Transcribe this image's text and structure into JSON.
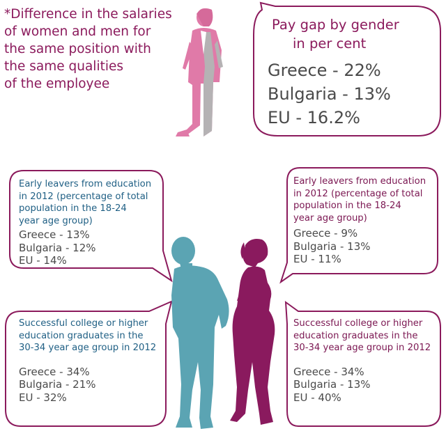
{
  "note": {
    "lines": [
      "*Difference in the salaries",
      "of women and men for",
      "the same position with",
      "the same qualities",
      "of the employee"
    ]
  },
  "pay_gap": {
    "title_lines": [
      "Pay gap by gender",
      "in per cent"
    ],
    "rows": [
      "Greece - 22%",
      "Bulgaria - 13%",
      "EU - 16.2%"
    ]
  },
  "panels": {
    "men_early": {
      "heading": [
        "Early leavers from education",
        "in 2012 (percentage of total",
        "population in the 18-24",
        "year age group)"
      ],
      "values": [
        "Greece - 13%",
        "Bulgaria - 12%",
        "EU - 14%"
      ]
    },
    "women_early": {
      "heading": [
        "Early leavers from education",
        "in 2012 (percentage of total",
        "population in the 18-24",
        "year age group)"
      ],
      "values": [
        "Greece - 9%",
        "Bulgaria - 13%",
        "EU - 11%"
      ]
    },
    "men_grad": {
      "heading": [
        "Successful college or higher",
        "education graduates in the",
        "30-34 year age group in 2012"
      ],
      "values": [
        "Greece - 34%",
        "Bulgaria - 21%",
        "EU - 32%"
      ]
    },
    "women_grad": {
      "heading": [
        "Successful college or higher",
        "education graduates in the",
        "30-34 year age group in 2012"
      ],
      "values": [
        "Greece - 34%",
        "Bulgaria - 13%",
        "EU - 40%"
      ]
    }
  },
  "colors": {
    "plum": "#8b1a5c",
    "teal": "#5ba4b3",
    "pink": "#e07aa8",
    "grey_figure": "#b5b2b4",
    "women_figure": "#8a1a5e"
  }
}
